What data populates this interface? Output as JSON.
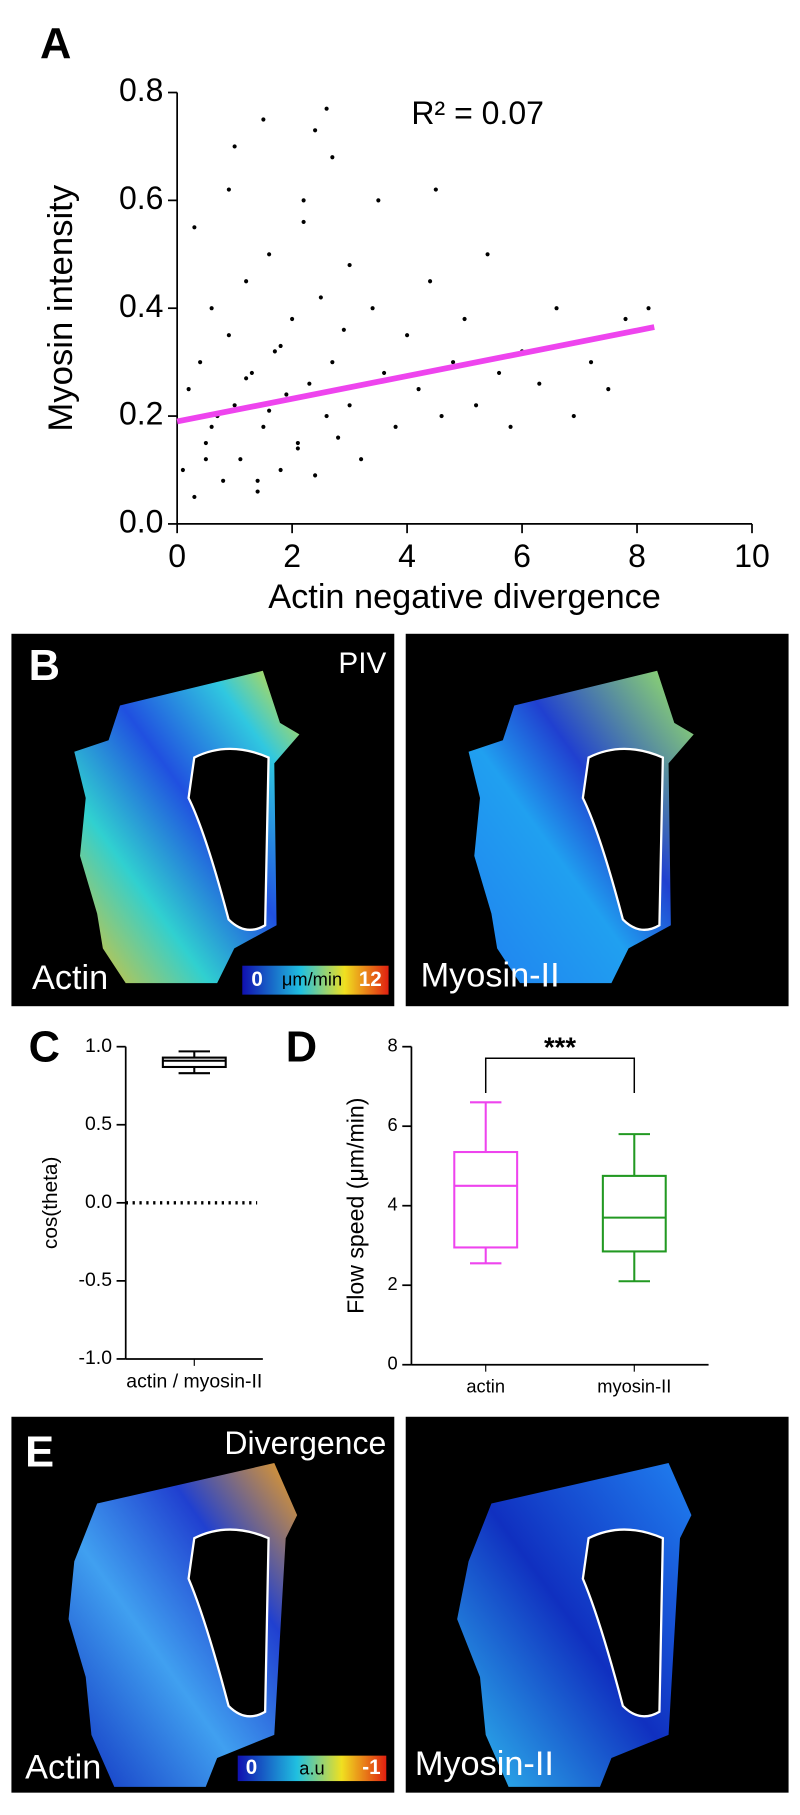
{
  "chart_data": [
    {
      "type": "scatter",
      "panel_label": "A",
      "annotation": "R² = 0.07",
      "x_label": "Actin negative divergence",
      "y_label": "Myosin intensity",
      "x": [
        0.1,
        0.2,
        0.3,
        0.4,
        0.5,
        0.6,
        0.7,
        0.8,
        0.9,
        1.0,
        1.1,
        1.2,
        1.3,
        1.4,
        1.5,
        1.6,
        1.7,
        1.8,
        1.9,
        2.0,
        2.1,
        2.2,
        2.3,
        2.4,
        2.5,
        2.6,
        2.7,
        2.8,
        2.9,
        3.0,
        3.2,
        3.4,
        3.6,
        3.8,
        4.0,
        4.2,
        4.4,
        4.6,
        4.8,
        5.0,
        5.2,
        5.4,
        5.6,
        5.8,
        6.0,
        6.3,
        6.6,
        6.9,
        7.2,
        7.5,
        7.8,
        8.2,
        0.3,
        0.6,
        0.9,
        1.2,
        1.5,
        1.8,
        2.1,
        2.4,
        2.7,
        3.0,
        1.6,
        2.6,
        1.0,
        0.5,
        1.4,
        2.2,
        3.5,
        4.5
      ],
      "values": [
        0.1,
        0.25,
        0.05,
        0.3,
        0.15,
        0.4,
        0.2,
        0.08,
        0.35,
        0.22,
        0.12,
        0.45,
        0.28,
        0.06,
        0.18,
        0.5,
        0.32,
        0.1,
        0.24,
        0.38,
        0.14,
        0.6,
        0.26,
        0.09,
        0.42,
        0.2,
        0.3,
        0.16,
        0.36,
        0.22,
        0.12,
        0.4,
        0.28,
        0.18,
        0.35,
        0.25,
        0.45,
        0.2,
        0.3,
        0.38,
        0.22,
        0.5,
        0.28,
        0.18,
        0.32,
        0.26,
        0.4,
        0.2,
        0.3,
        0.25,
        0.38,
        0.4,
        0.55,
        0.18,
        0.62,
        0.27,
        0.75,
        0.33,
        0.15,
        0.73,
        0.68,
        0.48,
        0.21,
        0.77,
        0.7,
        0.12,
        0.08,
        0.56,
        0.6,
        0.62
      ],
      "color": "#000000",
      "fit": {
        "x": [
          0,
          8.3
        ],
        "y": [
          0.19,
          0.365
        ],
        "color": "#ee44ee"
      },
      "xlim": [
        0,
        10
      ],
      "xticks": [
        0,
        2,
        4,
        6,
        8,
        10
      ],
      "ylim": [
        0,
        0.8
      ],
      "yticks": [
        {
          "value": 0,
          "label": "0.0"
        },
        0.2,
        0.4,
        0.6,
        0.8
      ]
    },
    {
      "type": "box",
      "panel_label": "C",
      "y_label": "cos(theta)",
      "categories": [
        "actin / myosin-II"
      ],
      "boxes": [
        {
          "min": 0.83,
          "q1": 0.87,
          "median": 0.91,
          "q3": 0.93,
          "max": 0.97,
          "color": "#000000"
        }
      ],
      "reference_line": 0,
      "ylim": [
        -1,
        1
      ],
      "yticks": [
        {
          "value": 1,
          "label": "1.0"
        },
        0.5,
        {
          "value": 0,
          "label": "0.0"
        },
        -0.5,
        {
          "value": -1,
          "label": "-1.0"
        }
      ]
    },
    {
      "type": "box",
      "panel_label": "D",
      "y_label": "Flow speed (μm/min)",
      "annotation": "***",
      "categories": [
        "actin",
        "myosin-II"
      ],
      "boxes": [
        {
          "min": 2.55,
          "q1": 2.95,
          "median": 4.5,
          "q3": 5.35,
          "max": 6.6,
          "color": "#ee44ee"
        },
        {
          "min": 2.1,
          "q1": 2.85,
          "median": 3.7,
          "q3": 4.75,
          "max": 5.8,
          "color": "#229922"
        }
      ],
      "ylim": [
        0,
        8
      ],
      "yticks": [
        0,
        2,
        4,
        6,
        8
      ]
    }
  ],
  "image_panels": [
    {
      "panel_label": "B",
      "title": "PIV",
      "images": [
        "Actin",
        "Myosin-II"
      ],
      "colorbar": {
        "min": "0",
        "unit": "μm/min",
        "max": "12"
      }
    },
    {
      "panel_label": "E",
      "title": "Divergence",
      "images": [
        "Actin",
        "Myosin-II"
      ],
      "colorbar": {
        "min": "0",
        "unit": "a.u",
        "max": "-1"
      }
    }
  ]
}
